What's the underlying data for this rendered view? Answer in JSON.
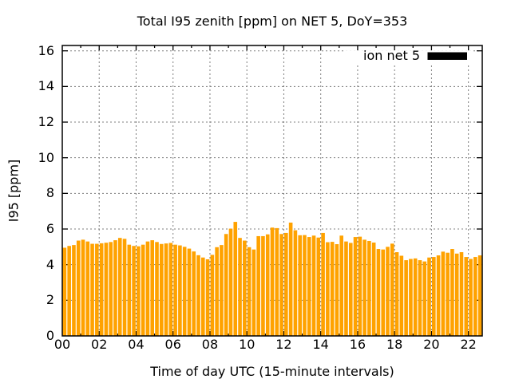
{
  "chart_data": {
    "type": "bar",
    "title": "Total I95 zenith [ppm] on NET 5, DoY=353",
    "xlabel": "Time of day UTC (15-minute intervals)",
    "ylabel": "I95 [ppm]",
    "legend": {
      "label": "ion net 5",
      "swatch_color": "#000000"
    },
    "grid": "dashed",
    "bar_color": "#ffa200",
    "xlim": [
      0,
      22.75
    ],
    "ylim": [
      0,
      16.3
    ],
    "x_start_hours": 0.125,
    "x_step_hours": 0.25,
    "xticks": {
      "values": [
        0,
        2,
        4,
        6,
        8,
        10,
        12,
        14,
        16,
        18,
        20,
        22
      ],
      "labels": [
        "00",
        "02",
        "04",
        "06",
        "08",
        "10",
        "12",
        "14",
        "16",
        "18",
        "20",
        "22"
      ]
    },
    "yticks": {
      "values": [
        0,
        2,
        4,
        6,
        8,
        10,
        12,
        14,
        16
      ],
      "labels": [
        "0",
        "2",
        "4",
        "6",
        "8",
        "10",
        "12",
        "14",
        "16"
      ]
    },
    "series": [
      {
        "name": "ion net 5",
        "values": [
          4.95,
          5.05,
          5.1,
          5.35,
          5.4,
          5.3,
          5.17,
          5.17,
          5.2,
          5.23,
          5.27,
          5.37,
          5.5,
          5.45,
          5.12,
          5.05,
          5.03,
          5.12,
          5.3,
          5.37,
          5.27,
          5.16,
          5.19,
          5.22,
          5.12,
          5.08,
          5.0,
          4.9,
          4.74,
          4.53,
          4.4,
          4.3,
          4.55,
          4.98,
          5.1,
          5.72,
          6.02,
          6.4,
          5.5,
          5.35,
          4.98,
          4.85,
          5.6,
          5.6,
          5.7,
          6.08,
          6.05,
          5.72,
          5.78,
          6.36,
          5.93,
          5.65,
          5.66,
          5.55,
          5.63,
          5.52,
          5.78,
          5.26,
          5.28,
          5.15,
          5.63,
          5.3,
          5.22,
          5.55,
          5.57,
          5.4,
          5.33,
          5.24,
          4.88,
          4.85,
          5.0,
          5.18,
          4.7,
          4.5,
          4.25,
          4.32,
          4.35,
          4.25,
          4.18,
          4.4,
          4.43,
          4.52,
          4.73,
          4.67,
          4.88,
          4.62,
          4.7,
          4.43,
          4.32,
          4.43,
          4.52
        ]
      }
    ]
  }
}
